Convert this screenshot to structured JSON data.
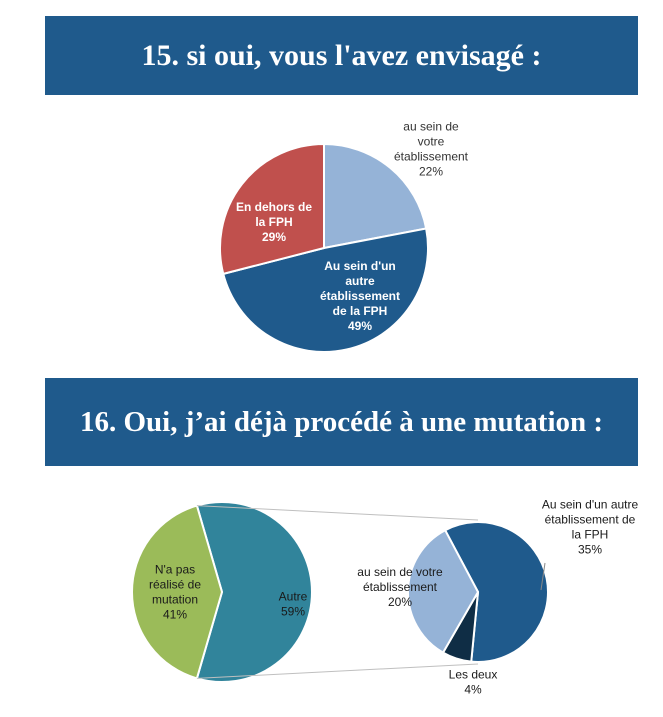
{
  "section1": {
    "title": "15. si oui, vous l'avez envisagé :"
  },
  "section2": {
    "title": "16. Oui, j’ai déjà procédé à une mutation :"
  },
  "colors": {
    "banner": "#1f5a8c",
    "light_blue": "#95b3d7",
    "dark_blue": "#1f5a8c",
    "red": "#c0504d",
    "green": "#9bbb59",
    "teal": "#31849b",
    "navy": "#0f2d45"
  },
  "chart_data": [
    {
      "type": "pie",
      "title": "15. si oui, vous l'avez envisagé :",
      "slices": [
        {
          "label_lines": [
            "au sein de",
            "votre",
            "établissement",
            "22%"
          ],
          "value": 22,
          "color": "#95b3d7"
        },
        {
          "label_lines": [
            "Au sein d'un",
            "autre",
            "établissement",
            "de la FPH",
            "49%"
          ],
          "value": 49,
          "color": "#1f5a8c"
        },
        {
          "label_lines": [
            "En dehors de",
            "la  FPH",
            "29%"
          ],
          "value": 29,
          "color": "#c0504d"
        }
      ]
    },
    {
      "type": "pie",
      "title": "16. Oui, j’ai déjà procédé à une mutation :",
      "subtype": "pie-of-pie",
      "slices": [
        {
          "label_lines": [
            "Autre",
            "59%"
          ],
          "value": 59,
          "color": "#31849b"
        },
        {
          "label_lines": [
            "N'a pas",
            "réalisé de",
            "mutation",
            "41%"
          ],
          "value": 41,
          "color": "#9bbb59"
        }
      ],
      "breakdown_of": "Autre",
      "breakdown": [
        {
          "label_lines": [
            "Au sein d'un autre",
            "établissement de",
            "la FPH",
            "35%"
          ],
          "value": 35,
          "color": "#1f5a8c"
        },
        {
          "label_lines": [
            "Les deux",
            "4%"
          ],
          "value": 4,
          "color": "#0f2d45"
        },
        {
          "label_lines": [
            "au sein de votre",
            "établissement",
            "20%"
          ],
          "value": 20,
          "color": "#95b3d7"
        }
      ]
    }
  ]
}
